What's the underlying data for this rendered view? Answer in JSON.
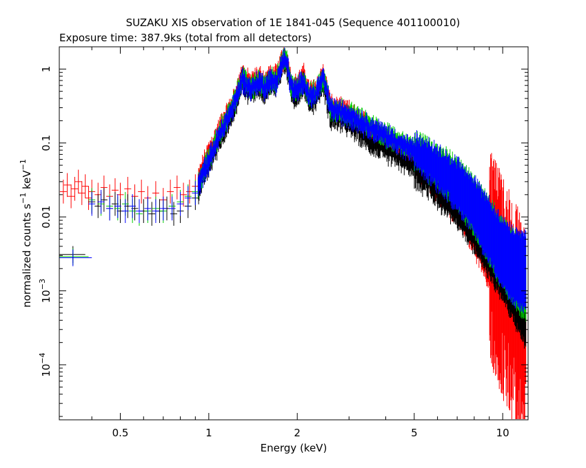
{
  "chart_data": {
    "type": "scatter",
    "title": "SUZAKU XIS observation of 1E 1841-045 (Sequence 401100010)",
    "subtitle": "Exposure time: 387.9ks (total from all detectors)",
    "xlabel": "Energy (keV)",
    "ylabel_base": "normalized counts s",
    "ylabel_mid": " keV",
    "ylabel_sup": "−1",
    "x_scale": "log",
    "y_scale": "log",
    "xlim": [
      0.31,
      12.2
    ],
    "ylim": [
      1.8e-05,
      2.0
    ],
    "grid": false,
    "legend": "none",
    "x_ticks_major": [
      {
        "value": 0.5,
        "label": "0.5"
      },
      {
        "value": 1,
        "label": "1"
      },
      {
        "value": 2,
        "label": "2"
      },
      {
        "value": 5,
        "label": "5"
      },
      {
        "value": 10,
        "label": "10"
      }
    ],
    "x_ticks_minor": [
      0.4,
      0.6,
      0.7,
      0.8,
      0.9,
      3,
      4,
      6,
      7,
      8,
      9
    ],
    "y_ticks_major": [
      {
        "value": 1,
        "label": "1",
        "exp": ""
      },
      {
        "value": 0.1,
        "label": "0.1",
        "exp": ""
      },
      {
        "value": 0.01,
        "label": "0.01",
        "exp": ""
      },
      {
        "value": 0.001,
        "label": "10",
        "exp": "−3"
      },
      {
        "value": 0.0001,
        "label": "10",
        "exp": "−4"
      }
    ],
    "series": [
      {
        "color": "#ff0000",
        "low_points": [
          [
            0.32,
            0.022
          ],
          [
            0.33,
            0.027
          ],
          [
            0.34,
            0.019
          ],
          [
            0.35,
            0.024
          ],
          [
            0.36,
            0.03
          ],
          [
            0.37,
            0.021
          ],
          [
            0.38,
            0.026
          ],
          [
            0.39,
            0.018
          ],
          [
            0.4,
            0.022
          ],
          [
            0.42,
            0.02
          ],
          [
            0.44,
            0.025
          ],
          [
            0.46,
            0.019
          ],
          [
            0.48,
            0.023
          ],
          [
            0.5,
            0.02
          ],
          [
            0.53,
            0.024
          ],
          [
            0.56,
            0.019
          ],
          [
            0.59,
            0.022
          ],
          [
            0.62,
            0.018
          ],
          [
            0.66,
            0.021
          ],
          [
            0.7,
            0.017
          ],
          [
            0.74,
            0.022
          ],
          [
            0.78,
            0.025
          ],
          [
            0.82,
            0.02
          ],
          [
            0.86,
            0.022
          ],
          [
            0.9,
            0.026
          ]
        ],
        "curve": [
          [
            0.92,
            0.03
          ],
          [
            0.95,
            0.045
          ],
          [
            1.0,
            0.075
          ],
          [
            1.05,
            0.11
          ],
          [
            1.1,
            0.17
          ],
          [
            1.15,
            0.23
          ],
          [
            1.2,
            0.32
          ],
          [
            1.25,
            0.5
          ],
          [
            1.3,
            0.85
          ],
          [
            1.35,
            0.68
          ],
          [
            1.4,
            0.62
          ],
          [
            1.45,
            0.72
          ],
          [
            1.5,
            0.74
          ],
          [
            1.55,
            0.64
          ],
          [
            1.6,
            0.75
          ],
          [
            1.7,
            0.78
          ],
          [
            1.8,
            1.5
          ],
          [
            1.85,
            1.25
          ],
          [
            1.9,
            0.7
          ],
          [
            1.95,
            0.55
          ],
          [
            2.0,
            0.6
          ],
          [
            2.1,
            0.8
          ],
          [
            2.2,
            0.48
          ],
          [
            2.3,
            0.5
          ],
          [
            2.45,
            0.85
          ],
          [
            2.6,
            0.3
          ],
          [
            2.8,
            0.27
          ],
          [
            3.0,
            0.25
          ],
          [
            3.3,
            0.19
          ],
          [
            3.6,
            0.145
          ],
          [
            4.0,
            0.11
          ],
          [
            4.5,
            0.083
          ],
          [
            5.0,
            0.063
          ],
          [
            5.5,
            0.046
          ],
          [
            6.0,
            0.034
          ],
          [
            6.5,
            0.025
          ],
          [
            7.0,
            0.018
          ],
          [
            7.5,
            0.012
          ],
          [
            8.0,
            0.0078
          ],
          [
            8.5,
            0.0048
          ],
          [
            9.0,
            0.003
          ],
          [
            9.5,
            0.0018
          ],
          [
            10.0,
            0.0011
          ],
          [
            10.5,
            0.0007
          ],
          [
            11.0,
            0.00045
          ],
          [
            11.5,
            0.0003
          ],
          [
            12.0,
            0.0002
          ]
        ]
      },
      {
        "color": "#000000",
        "low_points": [
          [
            0.4,
            0.016
          ],
          [
            0.42,
            0.014
          ],
          [
            0.44,
            0.017
          ],
          [
            0.46,
            0.013
          ],
          [
            0.48,
            0.015
          ],
          [
            0.5,
            0.012
          ],
          [
            0.53,
            0.014
          ],
          [
            0.56,
            0.013
          ],
          [
            0.6,
            0.012
          ],
          [
            0.64,
            0.011
          ],
          [
            0.68,
            0.012
          ],
          [
            0.72,
            0.013
          ],
          [
            0.76,
            0.011
          ],
          [
            0.8,
            0.012
          ],
          [
            0.85,
            0.014
          ],
          [
            0.9,
            0.018
          ]
        ],
        "curve": [
          [
            0.92,
            0.022
          ],
          [
            0.95,
            0.032
          ],
          [
            1.0,
            0.05
          ],
          [
            1.05,
            0.08
          ],
          [
            1.1,
            0.12
          ],
          [
            1.15,
            0.17
          ],
          [
            1.2,
            0.24
          ],
          [
            1.25,
            0.38
          ],
          [
            1.3,
            0.7
          ],
          [
            1.35,
            0.52
          ],
          [
            1.4,
            0.48
          ],
          [
            1.45,
            0.57
          ],
          [
            1.5,
            0.58
          ],
          [
            1.55,
            0.5
          ],
          [
            1.6,
            0.6
          ],
          [
            1.7,
            0.62
          ],
          [
            1.8,
            1.25
          ],
          [
            1.85,
            1.05
          ],
          [
            1.9,
            0.55
          ],
          [
            1.95,
            0.42
          ],
          [
            2.0,
            0.45
          ],
          [
            2.1,
            0.62
          ],
          [
            2.2,
            0.36
          ],
          [
            2.3,
            0.38
          ],
          [
            2.45,
            0.66
          ],
          [
            2.6,
            0.22
          ],
          [
            2.8,
            0.2
          ],
          [
            3.0,
            0.18
          ],
          [
            3.3,
            0.13
          ],
          [
            3.6,
            0.1
          ],
          [
            4.0,
            0.078
          ],
          [
            4.5,
            0.06
          ],
          [
            5.0,
            0.047
          ],
          [
            5.5,
            0.036
          ],
          [
            6.0,
            0.028
          ],
          [
            6.5,
            0.021
          ],
          [
            7.0,
            0.016
          ],
          [
            7.5,
            0.0115
          ],
          [
            8.0,
            0.0082
          ],
          [
            8.5,
            0.0058
          ],
          [
            9.0,
            0.0041
          ],
          [
            9.5,
            0.0029
          ],
          [
            10.0,
            0.0021
          ],
          [
            10.5,
            0.0015
          ],
          [
            11.0,
            0.0011
          ],
          [
            11.5,
            0.0008
          ],
          [
            12.0,
            0.0006
          ]
        ]
      },
      {
        "color": "#00cc00",
        "low_points": [
          [
            0.4,
            0.017
          ],
          [
            0.43,
            0.015
          ],
          [
            0.46,
            0.014
          ],
          [
            0.49,
            0.013
          ],
          [
            0.52,
            0.015
          ],
          [
            0.55,
            0.012
          ],
          [
            0.58,
            0.011
          ],
          [
            0.62,
            0.012
          ],
          [
            0.66,
            0.013
          ],
          [
            0.7,
            0.012
          ],
          [
            0.75,
            0.014
          ],
          [
            0.8,
            0.016
          ],
          [
            0.85,
            0.019
          ],
          [
            0.9,
            0.022
          ]
        ],
        "curve": [
          [
            0.92,
            0.026
          ],
          [
            0.95,
            0.038
          ],
          [
            1.0,
            0.06
          ],
          [
            1.05,
            0.095
          ],
          [
            1.1,
            0.15
          ],
          [
            1.15,
            0.21
          ],
          [
            1.2,
            0.29
          ],
          [
            1.25,
            0.45
          ],
          [
            1.3,
            0.78
          ],
          [
            1.35,
            0.6
          ],
          [
            1.4,
            0.55
          ],
          [
            1.45,
            0.65
          ],
          [
            1.5,
            0.67
          ],
          [
            1.55,
            0.58
          ],
          [
            1.6,
            0.68
          ],
          [
            1.7,
            0.7
          ],
          [
            1.8,
            1.4
          ],
          [
            1.85,
            1.2
          ],
          [
            1.9,
            0.65
          ],
          [
            1.95,
            0.5
          ],
          [
            2.0,
            0.55
          ],
          [
            2.1,
            0.73
          ],
          [
            2.2,
            0.44
          ],
          [
            2.3,
            0.46
          ],
          [
            2.45,
            0.78
          ],
          [
            2.6,
            0.3
          ],
          [
            2.8,
            0.27
          ],
          [
            3.0,
            0.25
          ],
          [
            3.3,
            0.2
          ],
          [
            3.6,
            0.16
          ],
          [
            4.0,
            0.13
          ],
          [
            4.5,
            0.1
          ],
          [
            5.0,
            0.08
          ],
          [
            5.5,
            0.062
          ],
          [
            6.0,
            0.048
          ],
          [
            6.5,
            0.037
          ],
          [
            7.0,
            0.028
          ],
          [
            7.5,
            0.02
          ],
          [
            8.0,
            0.014
          ],
          [
            8.5,
            0.0095
          ],
          [
            9.0,
            0.0065
          ],
          [
            9.5,
            0.0045
          ],
          [
            10.0,
            0.0032
          ],
          [
            10.5,
            0.0024
          ],
          [
            11.0,
            0.0019
          ],
          [
            11.5,
            0.0016
          ],
          [
            12.0,
            0.0014
          ]
        ]
      },
      {
        "color": "#0000ff",
        "low_points": [
          [
            0.4,
            0.015
          ],
          [
            0.43,
            0.016
          ],
          [
            0.46,
            0.013
          ],
          [
            0.49,
            0.014
          ],
          [
            0.52,
            0.012
          ],
          [
            0.55,
            0.014
          ],
          [
            0.58,
            0.012
          ],
          [
            0.62,
            0.013
          ],
          [
            0.66,
            0.012
          ],
          [
            0.7,
            0.013
          ],
          [
            0.75,
            0.013
          ],
          [
            0.8,
            0.015
          ],
          [
            0.85,
            0.018
          ],
          [
            0.9,
            0.021
          ]
        ],
        "curve": [
          [
            0.92,
            0.025
          ],
          [
            0.95,
            0.036
          ],
          [
            1.0,
            0.057
          ],
          [
            1.05,
            0.09
          ],
          [
            1.1,
            0.14
          ],
          [
            1.15,
            0.2
          ],
          [
            1.2,
            0.28
          ],
          [
            1.25,
            0.43
          ],
          [
            1.3,
            0.75
          ],
          [
            1.35,
            0.58
          ],
          [
            1.4,
            0.53
          ],
          [
            1.45,
            0.63
          ],
          [
            1.5,
            0.65
          ],
          [
            1.55,
            0.56
          ],
          [
            1.6,
            0.66
          ],
          [
            1.7,
            0.68
          ],
          [
            1.8,
            1.35
          ],
          [
            1.85,
            1.15
          ],
          [
            1.9,
            0.62
          ],
          [
            1.95,
            0.48
          ],
          [
            2.0,
            0.52
          ],
          [
            2.1,
            0.7
          ],
          [
            2.2,
            0.42
          ],
          [
            2.3,
            0.44
          ],
          [
            2.45,
            0.75
          ],
          [
            2.6,
            0.29
          ],
          [
            2.8,
            0.26
          ],
          [
            3.0,
            0.24
          ],
          [
            3.3,
            0.19
          ],
          [
            3.6,
            0.155
          ],
          [
            4.0,
            0.125
          ],
          [
            4.5,
            0.096
          ],
          [
            5.0,
            0.076
          ],
          [
            5.5,
            0.059
          ],
          [
            6.0,
            0.046
          ],
          [
            6.5,
            0.035
          ],
          [
            7.0,
            0.027
          ],
          [
            7.5,
            0.019
          ],
          [
            8.0,
            0.0135
          ],
          [
            8.5,
            0.0092
          ],
          [
            9.0,
            0.0063
          ],
          [
            9.5,
            0.0044
          ],
          [
            10.0,
            0.0032
          ],
          [
            10.5,
            0.0025
          ],
          [
            11.0,
            0.0021
          ],
          [
            11.5,
            0.0019
          ],
          [
            12.0,
            0.0018
          ]
        ]
      }
    ],
    "isolated_points": [
      {
        "color": "#000000",
        "x": 0.345,
        "y": 0.0031,
        "x_err": [
          0.31,
          0.38
        ]
      },
      {
        "color": "#00cc00",
        "x": 0.345,
        "y": 0.0029,
        "x_err": [
          0.31,
          0.39
        ]
      },
      {
        "color": "#0000ff",
        "x": 0.345,
        "y": 0.0028,
        "x_err": [
          0.31,
          0.4
        ]
      }
    ]
  }
}
